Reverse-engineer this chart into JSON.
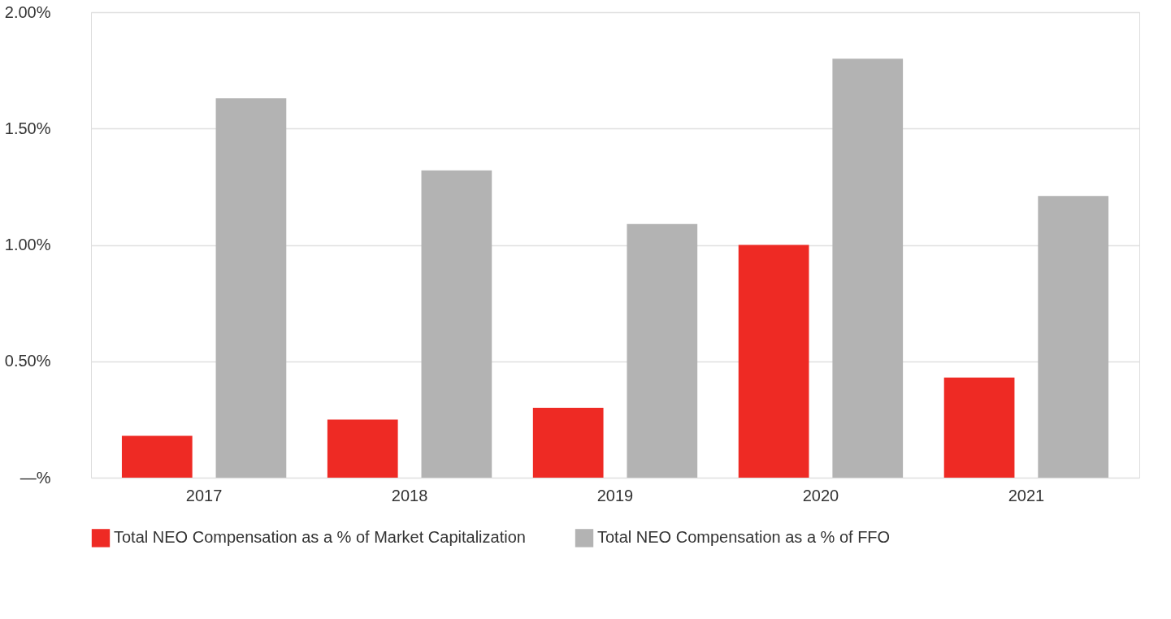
{
  "chart_data": {
    "type": "bar",
    "categories": [
      "2017",
      "2018",
      "2019",
      "2020",
      "2021"
    ],
    "series": [
      {
        "name": "Total NEO Compensation as a % of Market Capitalization",
        "color": "#ee2a24",
        "values": [
          0.18,
          0.25,
          0.3,
          1.0,
          0.43
        ]
      },
      {
        "name": "Total NEO Compensation as a % of FFO",
        "color": "#b3b3b3",
        "values": [
          1.63,
          1.32,
          1.09,
          1.8,
          1.21
        ]
      }
    ],
    "ylim": [
      0,
      2
    ],
    "yticks": [
      {
        "value": 0,
        "label": "—%"
      },
      {
        "value": 0.5,
        "label": "0.50%"
      },
      {
        "value": 1,
        "label": "1.00%"
      },
      {
        "value": 1.5,
        "label": "1.50%"
      },
      {
        "value": 2,
        "label": "2.00%"
      }
    ],
    "grid": "y",
    "legend": "bottom"
  }
}
